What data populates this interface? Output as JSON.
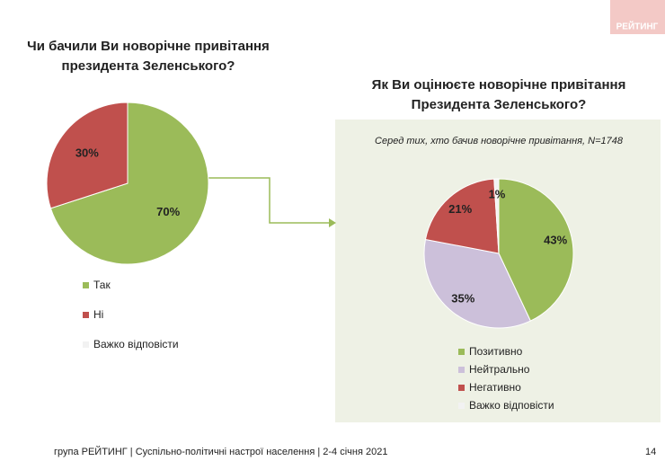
{
  "logo": "РЕЙТИНГ",
  "footer": "група РЕЙТИНГ | Суспільно-політичні настрої населення  | 2-4 січня 2021",
  "page_number": "14",
  "chart_data": [
    {
      "type": "pie",
      "title": [
        "Чи бачили Ви новорічне привітання",
        "президента Зеленського?"
      ],
      "categories": [
        "Так",
        "Ні",
        "Важко відповісти"
      ],
      "values": [
        70,
        30,
        0
      ],
      "value_labels": [
        "70%",
        "30%",
        null
      ],
      "colors": [
        "#9bbb59",
        "#c0504d",
        "#f2f2f2"
      ]
    },
    {
      "type": "pie",
      "title": [
        "Як Ви оцінюєте новорічне привітання",
        "Президента Зеленського?"
      ],
      "subtitle": "Серед тих, хто бачив новорічне привітання, N=1748",
      "categories": [
        "Позитивно",
        "Нейтрально",
        "Негативно",
        "Важко відповісти"
      ],
      "values": [
        43,
        35,
        21,
        1
      ],
      "value_labels": [
        "43%",
        "35%",
        "21%",
        "1%"
      ],
      "colors": [
        "#9bbb59",
        "#ccc0da",
        "#c0504d",
        "#f2f2f2"
      ]
    }
  ]
}
